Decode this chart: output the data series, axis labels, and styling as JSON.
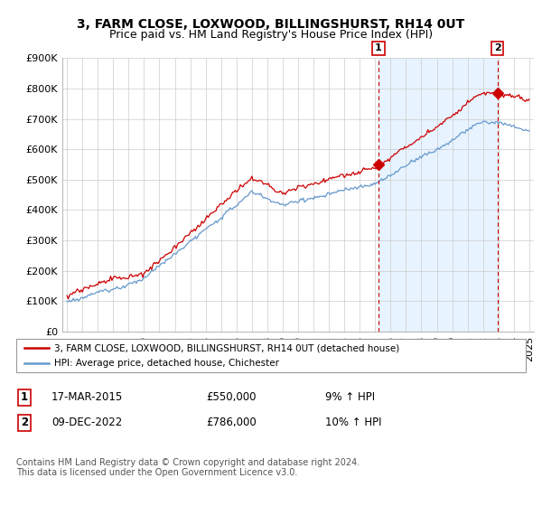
{
  "title": "3, FARM CLOSE, LOXWOOD, BILLINGSHURST, RH14 0UT",
  "subtitle": "Price paid vs. HM Land Registry's House Price Index (HPI)",
  "ylim": [
    0,
    900000
  ],
  "yticks": [
    0,
    100000,
    200000,
    300000,
    400000,
    500000,
    600000,
    700000,
    800000,
    900000
  ],
  "ytick_labels": [
    "£0",
    "£100K",
    "£200K",
    "£300K",
    "£400K",
    "£500K",
    "£600K",
    "£700K",
    "£800K",
    "£900K"
  ],
  "xlim_start": 1995.0,
  "xlim_end": 2025.0,
  "sale1_date": 2015.21,
  "sale1_price": 550000,
  "sale1_label": "1",
  "sale2_date": 2022.94,
  "sale2_price": 786000,
  "sale2_label": "2",
  "legend_line1": "3, FARM CLOSE, LOXWOOD, BILLINGSHURST, RH14 0UT (detached house)",
  "legend_line2": "HPI: Average price, detached house, Chichester",
  "table_row1": [
    "1",
    "17-MAR-2015",
    "£550,000",
    "9% ↑ HPI"
  ],
  "table_row2": [
    "2",
    "09-DEC-2022",
    "£786,000",
    "10% ↑ HPI"
  ],
  "footer": "Contains HM Land Registry data © Crown copyright and database right 2024.\nThis data is licensed under the Open Government Licence v3.0.",
  "line_color_red": "#cc0000",
  "line_color_blue": "#6699cc",
  "vline_color": "#cc0000",
  "shade_color": "#ddeeff",
  "grid_color": "#cccccc",
  "title_fontsize": 10,
  "subtitle_fontsize": 9,
  "tick_fontsize": 8
}
